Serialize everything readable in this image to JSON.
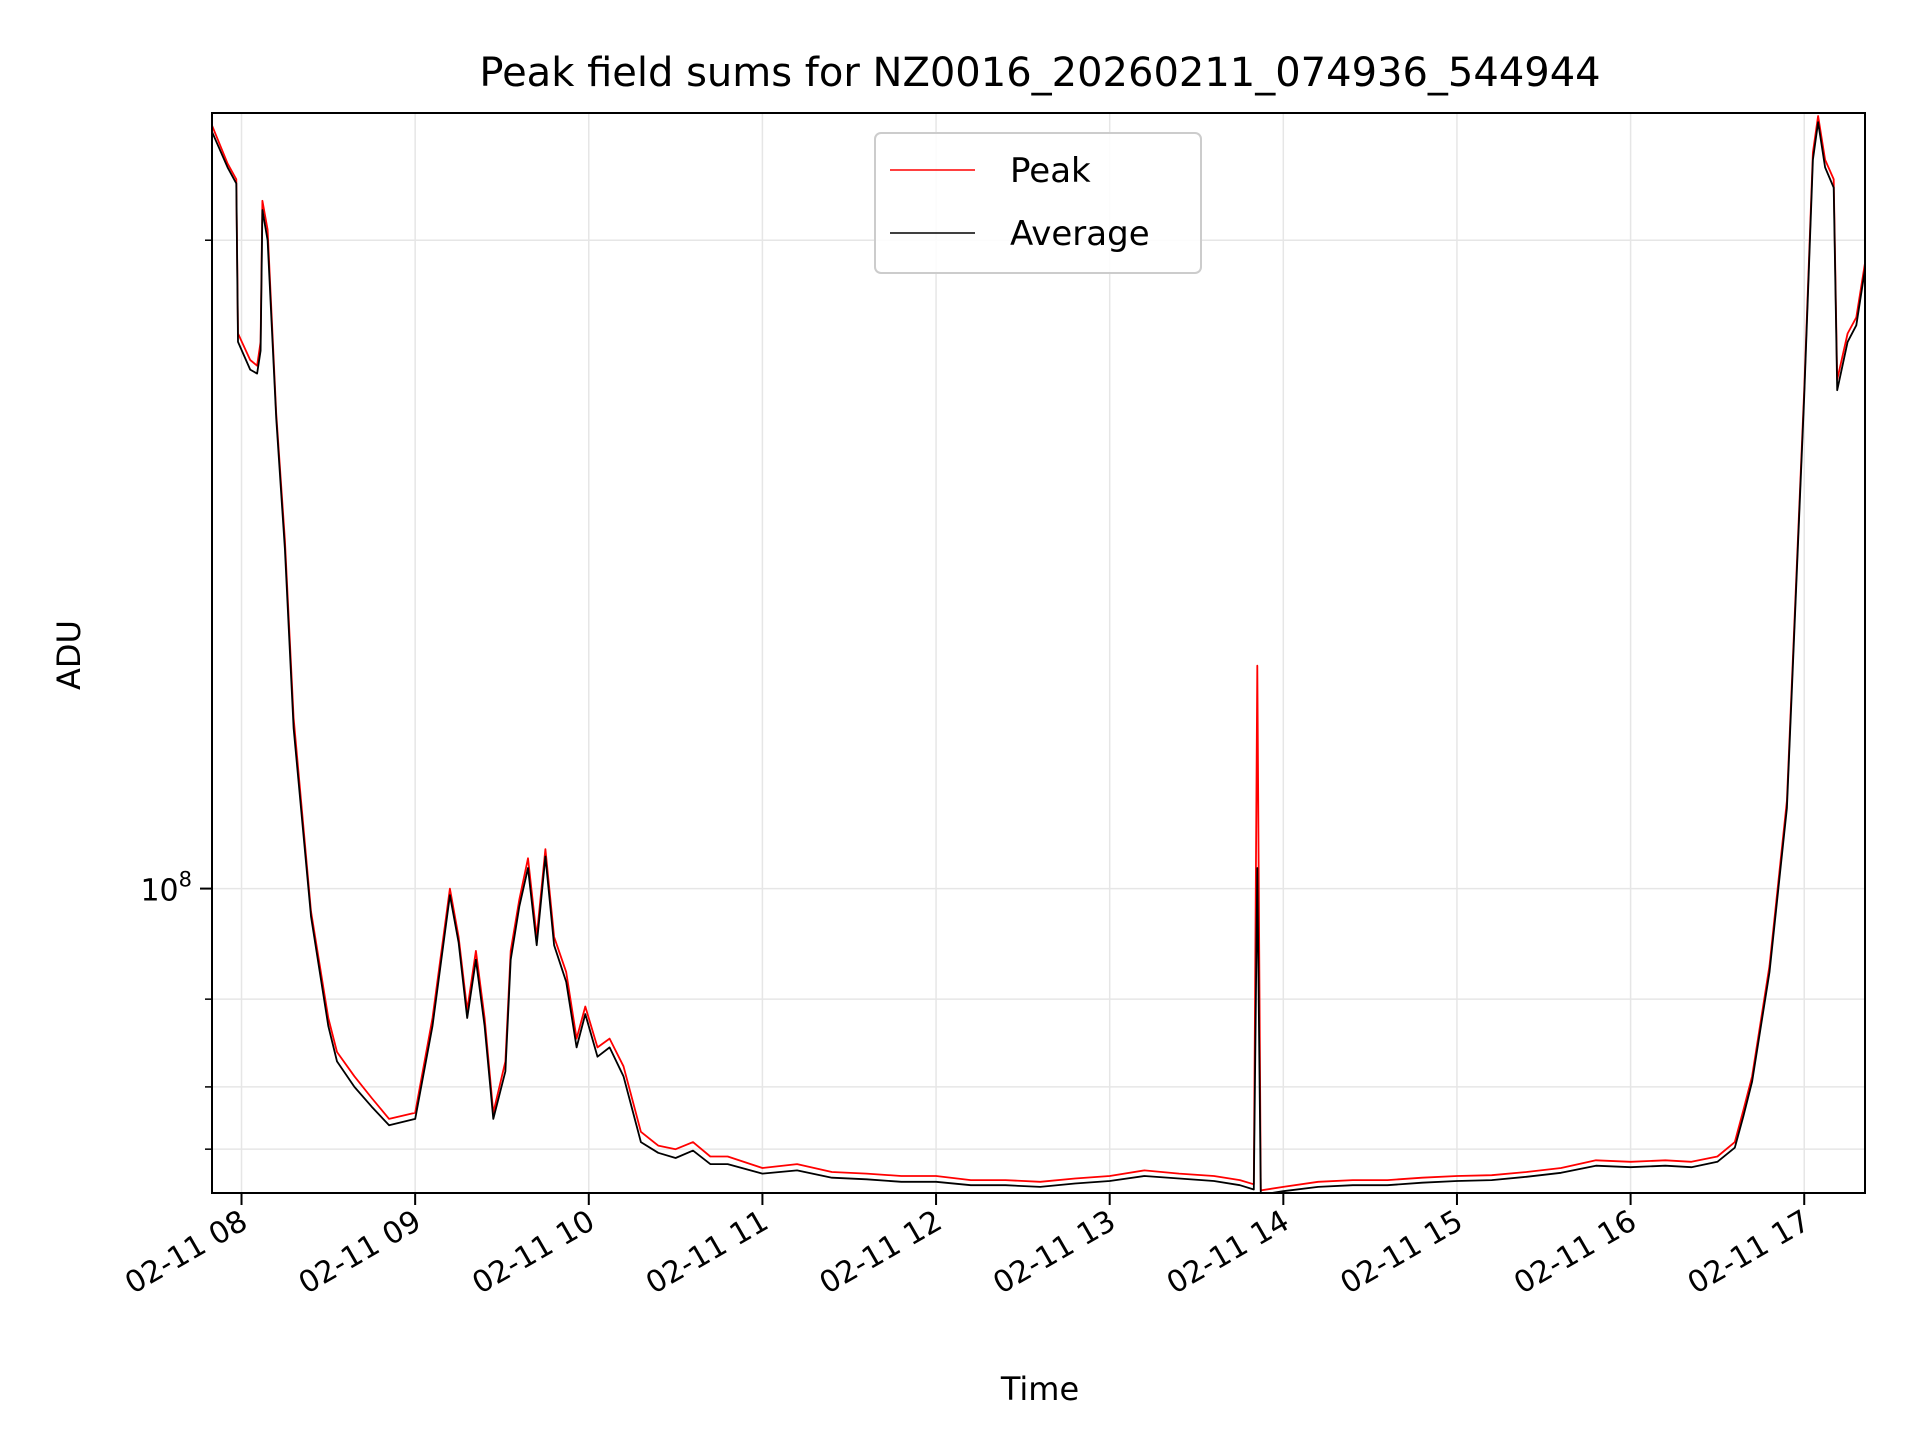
{
  "chart_data": {
    "type": "line",
    "title": "Peak field sums for NZ0016_20260211_074936_544944",
    "xlabel": "Time",
    "ylabel": "ADU",
    "yscale": "log",
    "xlim": [
      7.83,
      17.35
    ],
    "ylim": [
      24500000,
      3600000000
    ],
    "x_ticks": [
      {
        "value": 8,
        "label": "02-11 08"
      },
      {
        "value": 9,
        "label": "02-11 09"
      },
      {
        "value": 10,
        "label": "02-11 10"
      },
      {
        "value": 11,
        "label": "02-11 11"
      },
      {
        "value": 12,
        "label": "02-11 12"
      },
      {
        "value": 13,
        "label": "02-11 13"
      },
      {
        "value": 14,
        "label": "02-11 14"
      },
      {
        "value": 15,
        "label": "02-11 15"
      },
      {
        "value": 16,
        "label": "02-11 16"
      },
      {
        "value": 17,
        "label": "02-11 17"
      }
    ],
    "y_major_ticks": [
      {
        "value": 100000000,
        "base": "10",
        "exponent": "8"
      }
    ],
    "y_minor_ticks": [
      30000000,
      40000000,
      60000000,
      2000000000
    ],
    "grid": true,
    "legend_position": "top-center",
    "series": [
      {
        "name": "Peak",
        "color": "#ff0000",
        "points": [
          [
            7.83,
            3400000000
          ],
          [
            7.92,
            2850000000
          ],
          [
            7.97,
            2650000000
          ],
          [
            7.98,
            1300000000
          ],
          [
            8.05,
            1150000000
          ],
          [
            8.09,
            1120000000
          ],
          [
            8.11,
            1250000000
          ],
          [
            8.12,
            2400000000
          ],
          [
            8.15,
            2100000000
          ],
          [
            8.2,
            900000000
          ],
          [
            8.25,
            500000000
          ],
          [
            8.3,
            220000000
          ],
          [
            8.4,
            90000000
          ],
          [
            8.5,
            55000000
          ],
          [
            8.55,
            47000000
          ],
          [
            8.65,
            42000000
          ],
          [
            8.75,
            38000000
          ],
          [
            8.85,
            34500000
          ],
          [
            9.0,
            35500000
          ],
          [
            9.1,
            55000000
          ],
          [
            9.2,
            100000000
          ],
          [
            9.25,
            80000000
          ],
          [
            9.3,
            57000000
          ],
          [
            9.35,
            75000000
          ],
          [
            9.4,
            55000000
          ],
          [
            9.45,
            35500000
          ],
          [
            9.52,
            45000000
          ],
          [
            9.55,
            75000000
          ],
          [
            9.6,
            95000000
          ],
          [
            9.65,
            115000000
          ],
          [
            9.7,
            80000000
          ],
          [
            9.75,
            120000000
          ],
          [
            9.8,
            80000000
          ],
          [
            9.87,
            68000000
          ],
          [
            9.93,
            50000000
          ],
          [
            9.98,
            58000000
          ],
          [
            10.05,
            48000000
          ],
          [
            10.12,
            50000000
          ],
          [
            10.2,
            44000000
          ],
          [
            10.3,
            32500000
          ],
          [
            10.4,
            30500000
          ],
          [
            10.5,
            30000000
          ],
          [
            10.6,
            31000000
          ],
          [
            10.7,
            29000000
          ],
          [
            10.8,
            29000000
          ],
          [
            11.0,
            27500000
          ],
          [
            11.2,
            28000000
          ],
          [
            11.4,
            27000000
          ],
          [
            11.6,
            26800000
          ],
          [
            11.8,
            26500000
          ],
          [
            12.0,
            26500000
          ],
          [
            12.2,
            26000000
          ],
          [
            12.4,
            26000000
          ],
          [
            12.6,
            25800000
          ],
          [
            12.8,
            26200000
          ],
          [
            13.0,
            26500000
          ],
          [
            13.2,
            27200000
          ],
          [
            13.4,
            26800000
          ],
          [
            13.6,
            26500000
          ],
          [
            13.75,
            26000000
          ],
          [
            13.83,
            25500000
          ],
          [
            13.85,
            280000000
          ],
          [
            13.87,
            24800000
          ],
          [
            14.0,
            25200000
          ],
          [
            14.2,
            25800000
          ],
          [
            14.4,
            26000000
          ],
          [
            14.6,
            26000000
          ],
          [
            14.8,
            26300000
          ],
          [
            15.0,
            26500000
          ],
          [
            15.2,
            26600000
          ],
          [
            15.4,
            27000000
          ],
          [
            15.6,
            27500000
          ],
          [
            15.8,
            28500000
          ],
          [
            16.0,
            28300000
          ],
          [
            16.2,
            28500000
          ],
          [
            16.35,
            28300000
          ],
          [
            16.5,
            29000000
          ],
          [
            16.6,
            31000000
          ],
          [
            16.65,
            36000000
          ],
          [
            16.7,
            42000000
          ],
          [
            16.8,
            70000000
          ],
          [
            16.9,
            150000000
          ],
          [
            17.0,
            1000000000
          ],
          [
            17.05,
            3000000000
          ],
          [
            17.08,
            3550000000
          ],
          [
            17.12,
            2900000000
          ],
          [
            17.17,
            2650000000
          ],
          [
            17.19,
            1050000000
          ],
          [
            17.25,
            1300000000
          ],
          [
            17.3,
            1400000000
          ],
          [
            17.35,
            1800000000
          ]
        ]
      },
      {
        "name": "Average",
        "color": "#000000",
        "points": [
          [
            7.83,
            3300000000
          ],
          [
            7.92,
            2800000000
          ],
          [
            7.97,
            2600000000
          ],
          [
            7.98,
            1250000000
          ],
          [
            8.05,
            1100000000
          ],
          [
            8.09,
            1080000000
          ],
          [
            8.11,
            1200000000
          ],
          [
            8.12,
            2300000000
          ],
          [
            8.15,
            2000000000
          ],
          [
            8.2,
            880000000
          ],
          [
            8.25,
            480000000
          ],
          [
            8.3,
            210000000
          ],
          [
            8.4,
            88000000
          ],
          [
            8.5,
            53000000
          ],
          [
            8.55,
            45000000
          ],
          [
            8.65,
            40000000
          ],
          [
            8.75,
            36500000
          ],
          [
            8.85,
            33500000
          ],
          [
            9.0,
            34500000
          ],
          [
            9.1,
            53000000
          ],
          [
            9.2,
            97000000
          ],
          [
            9.25,
            78000000
          ],
          [
            9.3,
            55000000
          ],
          [
            9.35,
            72000000
          ],
          [
            9.4,
            53000000
          ],
          [
            9.45,
            34500000
          ],
          [
            9.52,
            43000000
          ],
          [
            9.55,
            72000000
          ],
          [
            9.6,
            92000000
          ],
          [
            9.65,
            110000000
          ],
          [
            9.7,
            77000000
          ],
          [
            9.75,
            116000000
          ],
          [
            9.8,
            77000000
          ],
          [
            9.87,
            65000000
          ],
          [
            9.93,
            48000000
          ],
          [
            9.98,
            56000000
          ],
          [
            10.05,
            46000000
          ],
          [
            10.12,
            48000000
          ],
          [
            10.2,
            42000000
          ],
          [
            10.3,
            31000000
          ],
          [
            10.4,
            29500000
          ],
          [
            10.5,
            28800000
          ],
          [
            10.6,
            29800000
          ],
          [
            10.7,
            28000000
          ],
          [
            10.8,
            28000000
          ],
          [
            11.0,
            26800000
          ],
          [
            11.2,
            27200000
          ],
          [
            11.4,
            26300000
          ],
          [
            11.6,
            26100000
          ],
          [
            11.8,
            25800000
          ],
          [
            12.0,
            25800000
          ],
          [
            12.2,
            25400000
          ],
          [
            12.4,
            25400000
          ],
          [
            12.6,
            25200000
          ],
          [
            12.8,
            25600000
          ],
          [
            13.0,
            25900000
          ],
          [
            13.2,
            26500000
          ],
          [
            13.4,
            26200000
          ],
          [
            13.6,
            25900000
          ],
          [
            13.75,
            25400000
          ],
          [
            13.83,
            24900000
          ],
          [
            13.85,
            110000000
          ],
          [
            13.87,
            24300000
          ],
          [
            14.0,
            24700000
          ],
          [
            14.2,
            25200000
          ],
          [
            14.4,
            25400000
          ],
          [
            14.6,
            25400000
          ],
          [
            14.8,
            25700000
          ],
          [
            15.0,
            25900000
          ],
          [
            15.2,
            26000000
          ],
          [
            15.4,
            26400000
          ],
          [
            15.6,
            26900000
          ],
          [
            15.8,
            27800000
          ],
          [
            16.0,
            27600000
          ],
          [
            16.2,
            27800000
          ],
          [
            16.35,
            27600000
          ],
          [
            16.5,
            28300000
          ],
          [
            16.6,
            30200000
          ],
          [
            16.65,
            35000000
          ],
          [
            16.7,
            41000000
          ],
          [
            16.8,
            68000000
          ],
          [
            16.9,
            145000000
          ],
          [
            17.0,
            970000000
          ],
          [
            17.05,
            2900000000
          ],
          [
            17.08,
            3450000000
          ],
          [
            17.12,
            2800000000
          ],
          [
            17.17,
            2550000000
          ],
          [
            17.19,
            1000000000
          ],
          [
            17.25,
            1250000000
          ],
          [
            17.3,
            1350000000
          ],
          [
            17.35,
            1750000000
          ]
        ]
      }
    ]
  }
}
